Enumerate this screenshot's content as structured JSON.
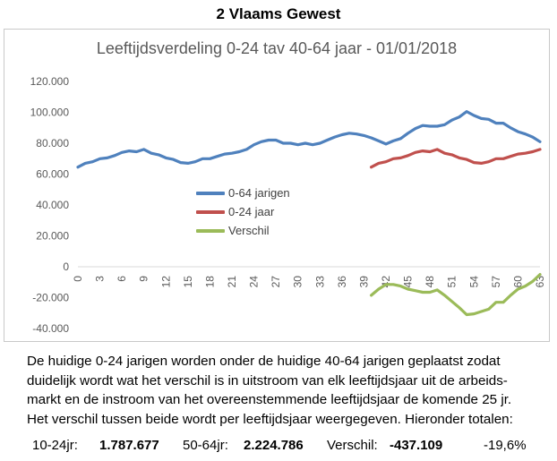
{
  "header": {
    "title": "2 Vlaams Gewest"
  },
  "chart_data": {
    "type": "line",
    "title": "Leeftijdsverdeling 0-24 tav 40-64 jaar - 01/01/2018",
    "x_ticks": [
      "0",
      "3",
      "6",
      "9",
      "12",
      "15",
      "18",
      "21",
      "24",
      "27",
      "30",
      "33",
      "36",
      "39",
      "42",
      "45",
      "48",
      "51",
      "54",
      "57",
      "60",
      "63"
    ],
    "y_ticks": [
      "120.000",
      "100.000",
      "80.000",
      "60.000",
      "40.000",
      "20.000",
      "0",
      "-20.000",
      "-40.000"
    ],
    "ylim": [
      -40000,
      120000
    ],
    "xlim": [
      0,
      63
    ],
    "legend_position": "center-left",
    "series": [
      {
        "name": "0-64 jarigen",
        "color": "#4f81bd",
        "x": [
          0,
          1,
          2,
          3,
          4,
          5,
          6,
          7,
          8,
          9,
          10,
          11,
          12,
          13,
          14,
          15,
          16,
          17,
          18,
          19,
          20,
          21,
          22,
          23,
          24,
          25,
          26,
          27,
          28,
          29,
          30,
          31,
          32,
          33,
          34,
          35,
          36,
          37,
          38,
          39,
          40,
          41,
          42,
          43,
          44,
          45,
          46,
          47,
          48,
          49,
          50,
          51,
          52,
          53,
          54,
          55,
          56,
          57,
          58,
          59,
          60,
          61,
          62,
          63
        ],
        "values": [
          64500,
          67000,
          68000,
          70000,
          70500,
          72000,
          74000,
          75000,
          74500,
          76000,
          73500,
          72500,
          70500,
          69500,
          67500,
          67000,
          68000,
          70000,
          70000,
          71500,
          73000,
          73500,
          74500,
          76000,
          79000,
          81000,
          82000,
          82000,
          80000,
          80000,
          79000,
          80000,
          79000,
          80000,
          82000,
          84000,
          85500,
          86500,
          86000,
          85000,
          83500,
          81500,
          79500,
          81500,
          83000,
          86500,
          89500,
          91500,
          91000,
          91000,
          92000,
          95000,
          97000,
          100500,
          98000,
          96000,
          95500,
          93000,
          93000,
          90000,
          87500,
          86000,
          84000,
          81000
        ]
      },
      {
        "name": "0-24 jaar",
        "color": "#c0504d",
        "x": [
          40,
          41,
          42,
          43,
          44,
          45,
          46,
          47,
          48,
          49,
          50,
          51,
          52,
          53,
          54,
          55,
          56,
          57,
          58,
          59,
          60,
          61,
          62,
          63
        ],
        "values": [
          64500,
          67000,
          68000,
          70000,
          70500,
          72000,
          74000,
          75000,
          74500,
          76000,
          73500,
          72500,
          70500,
          69500,
          67500,
          67000,
          68000,
          70000,
          70000,
          71500,
          73000,
          73500,
          74500,
          76000
        ]
      },
      {
        "name": "Verschil",
        "color": "#9bbb59",
        "x": [
          40,
          41,
          42,
          43,
          44,
          45,
          46,
          47,
          48,
          49,
          50,
          51,
          52,
          53,
          54,
          55,
          56,
          57,
          58,
          59,
          60,
          61,
          62,
          63
        ],
        "values": [
          -18500,
          -14500,
          -11500,
          -11500,
          -12500,
          -14500,
          -15500,
          -16500,
          -16500,
          -15000,
          -18500,
          -22500,
          -26500,
          -31000,
          -30500,
          -29000,
          -27500,
          -23000,
          -23000,
          -18500,
          -14500,
          -12500,
          -9500,
          -5000
        ]
      }
    ]
  },
  "caption": {
    "lines": [
      "De huidige 0-24 jarigen worden onder de huidige 40-64 jarigen geplaatst zodat",
      "duidelijk wordt wat het verschil is in uitstroom van elk leeftijdsjaar uit de arbeids-",
      "markt en de instroom van het overeenstemmende leeftijdsjaar de komende 25 jr.",
      "Het verschil tussen beide wordt per leeftijdsjaar weergegeven. Hieronder totalen:"
    ]
  },
  "totals": {
    "label1": "10-24jr:",
    "value1": "1.787.677",
    "label2": "50-64jr:",
    "value2": "2.224.786",
    "label3": "Verschil:",
    "value3": "-437.109",
    "percent": "-19,6%"
  }
}
